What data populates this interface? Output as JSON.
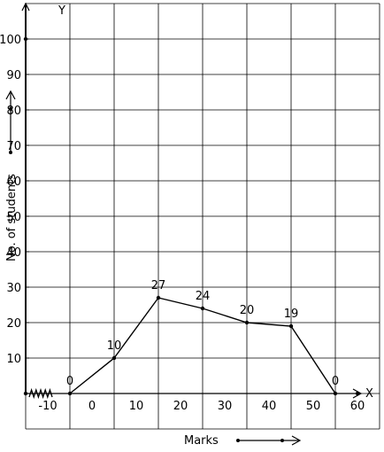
{
  "chart_data": {
    "type": "line",
    "title": "",
    "xlabel": "Marks",
    "ylabel": "No. of students",
    "x_axis_letter": "X",
    "y_axis_letter": "Y",
    "grid": true,
    "xlim": [
      -15,
      65
    ],
    "ylim": [
      -10,
      110
    ],
    "x_ticks": [
      -10,
      0,
      10,
      20,
      30,
      40,
      50,
      60
    ],
    "x_tick_labels": [
      "-10",
      "0",
      "10",
      "20",
      "30",
      "40",
      "50",
      "60"
    ],
    "y_ticks": [
      10,
      20,
      30,
      40,
      50,
      60,
      70,
      80,
      90,
      100
    ],
    "y_tick_labels": [
      "10",
      "20",
      "30",
      "40",
      "50",
      "60",
      "70",
      "80",
      "90",
      "100"
    ],
    "x_axis_break": true,
    "series": [
      {
        "x": [
          -5,
          5,
          15,
          25,
          35,
          45,
          55
        ],
        "y": [
          0,
          10,
          27,
          24,
          20,
          19,
          0
        ],
        "labels": [
          "0",
          "10",
          "27",
          "24",
          "20",
          "19",
          "0"
        ]
      }
    ]
  }
}
